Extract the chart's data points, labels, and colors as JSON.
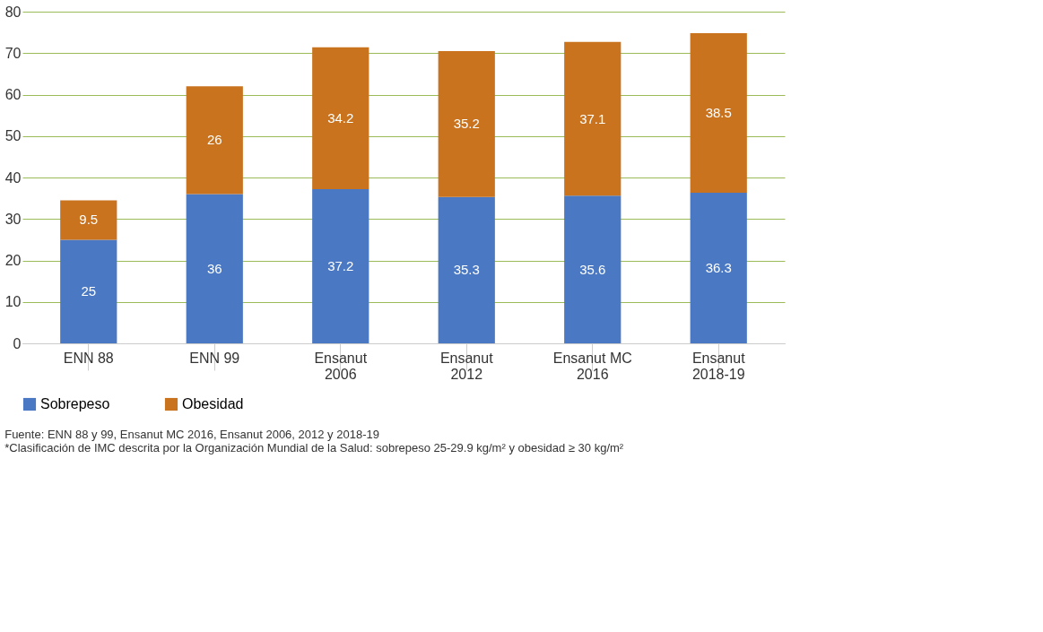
{
  "chart_data": {
    "type": "bar",
    "stacked": true,
    "categories": [
      "ENN 88",
      "ENN 99",
      "Ensanut\n2006",
      "Ensanut\n2012",
      "Ensanut MC\n2016",
      "Ensanut\n2018-19"
    ],
    "series": [
      {
        "name": "Sobrepeso",
        "color": "#4a78c2",
        "values": [
          25,
          36,
          37.2,
          35.3,
          35.6,
          36.3
        ]
      },
      {
        "name": "Obesidad",
        "color": "#c9731f",
        "values": [
          9.5,
          26,
          34.2,
          35.2,
          37.1,
          38.5
        ]
      }
    ],
    "ylim": [
      0,
      80
    ],
    "yticks": [
      0,
      10,
      20,
      30,
      40,
      50,
      60,
      70,
      80
    ],
    "grid": "y",
    "legend": "bottom",
    "data_labels": true,
    "annotations": [
      "Fuente: ENN 88 y 99,  Ensanut MC 2016, Ensanut 2006, 2012 y 2018-19",
      "*Clasificación de IMC descrita por la Organización Mundial de la Salud: sobrepeso 25-29.9 kg/m² y obesidad ≥ 30 kg/m²"
    ]
  }
}
